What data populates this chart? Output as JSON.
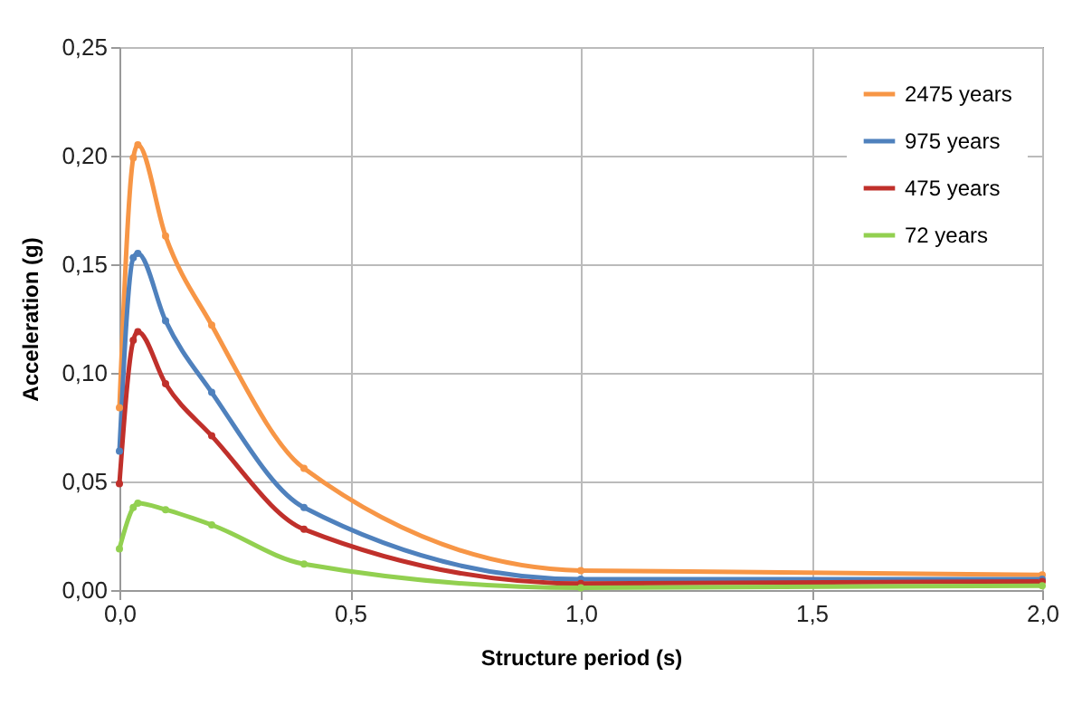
{
  "chart_data": {
    "type": "line",
    "xlabel": "Structure period  (s)",
    "ylabel": "Acceleration  (g)",
    "x": [
      0,
      0.03,
      0.04,
      0.1,
      0.2,
      0.4,
      1.0,
      2.0
    ],
    "series": [
      {
        "name": "2475 years",
        "color": "#f79646",
        "values": [
          0.084,
          0.199,
          0.205,
          0.163,
          0.122,
          0.056,
          0.009,
          0.007
        ]
      },
      {
        "name": "975 years",
        "color": "#4f81bd",
        "values": [
          0.064,
          0.153,
          0.155,
          0.124,
          0.091,
          0.038,
          0.005,
          0.005
        ]
      },
      {
        "name": "475 years",
        "color": "#c0302b",
        "values": [
          0.049,
          0.115,
          0.119,
          0.095,
          0.071,
          0.028,
          0.003,
          0.004
        ]
      },
      {
        "name": "72 years",
        "color": "#92d050",
        "values": [
          0.019,
          0.038,
          0.04,
          0.037,
          0.03,
          0.012,
          0.001,
          0.002
        ]
      }
    ],
    "xlim": [
      0,
      2
    ],
    "xticks": [
      {
        "value": 0,
        "label": "0,0"
      },
      {
        "value": 0.5,
        "label": "0,5"
      },
      {
        "value": 1,
        "label": "1,0"
      },
      {
        "value": 1.5,
        "label": "1,5"
      },
      {
        "value": 2,
        "label": "2,0"
      }
    ],
    "ylim": [
      0,
      0.25
    ],
    "yticks": [
      {
        "value": 0,
        "label": "0,00"
      },
      {
        "value": 0.05,
        "label": "0,05"
      },
      {
        "value": 0.1,
        "label": "0,10"
      },
      {
        "value": 0.15,
        "label": "0,15"
      },
      {
        "value": 0.2,
        "label": "0,20"
      },
      {
        "value": 0.25,
        "label": "0,25"
      }
    ],
    "grid": true,
    "legend": "top right",
    "marker": "circle",
    "line_style": "solid"
  }
}
